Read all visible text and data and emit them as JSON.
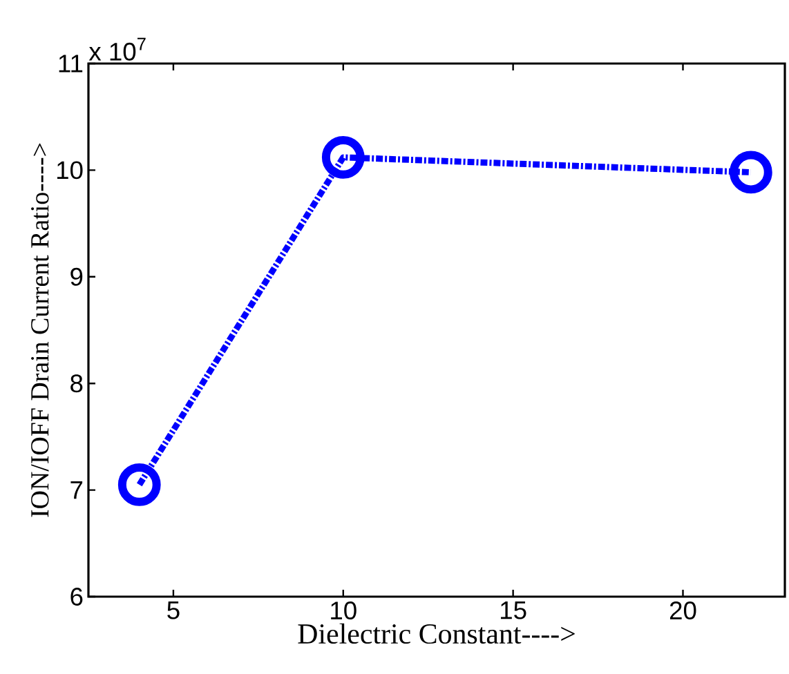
{
  "chart_data": {
    "type": "line",
    "xlabel": "Dielectric Constant---->",
    "ylabel": "ION/IOFF Drain Current Ratio---->",
    "annotations": [
      "x 10$^{7}$"
    ],
    "x": [
      4,
      10,
      22
    ],
    "series": [
      {
        "color": "#0000ff",
        "values": [
          7.05,
          10.12,
          9.98
        ]
      }
    ],
    "xlim": [
      2.5,
      23
    ],
    "xticks": [
      5,
      10,
      15,
      20
    ],
    "ylim": [
      6,
      11
    ],
    "yticks": [
      6,
      7,
      8,
      9,
      10,
      11
    ],
    "marker": "circle",
    "line_style": "dashed"
  }
}
